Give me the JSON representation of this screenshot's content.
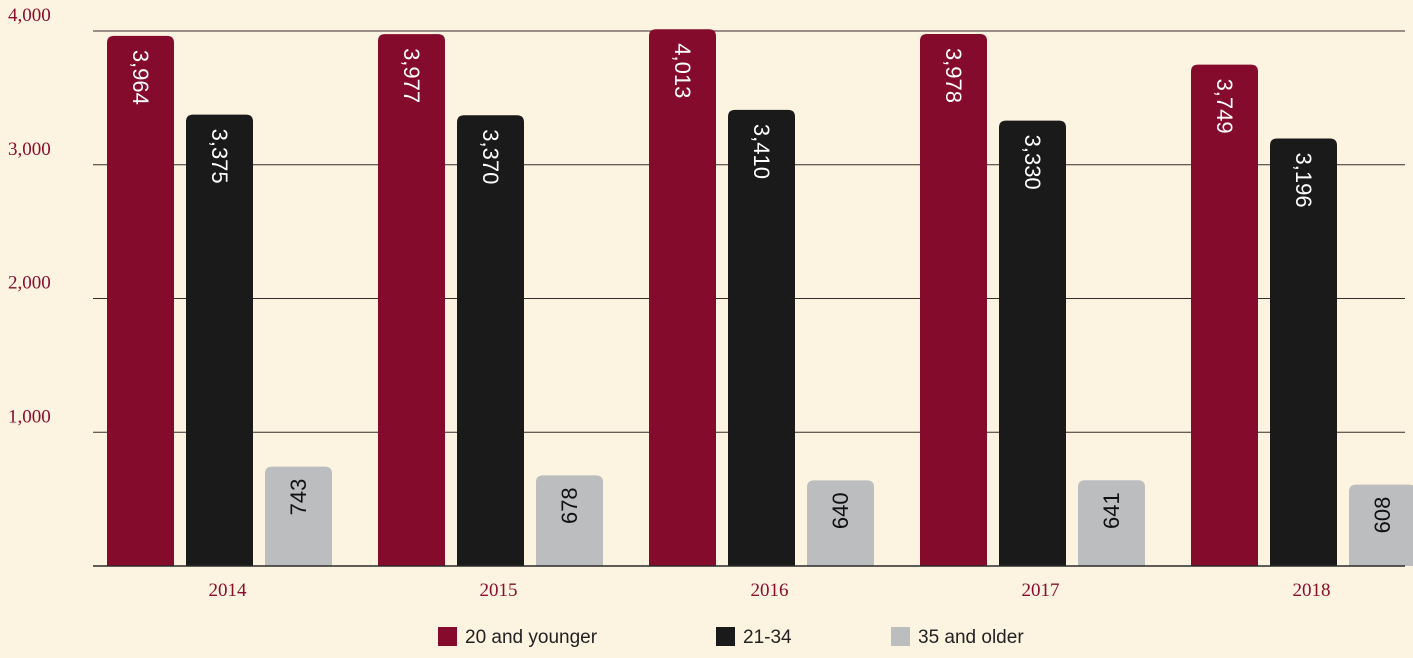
{
  "chart_data": {
    "type": "bar",
    "categories": [
      "2014",
      "2015",
      "2016",
      "2017",
      "2018"
    ],
    "series": [
      {
        "name": "20 and younger",
        "values": [
          3964,
          3977,
          4013,
          3978,
          3749
        ],
        "color": "#850b2c",
        "label_color": "#ffffff"
      },
      {
        "name": "21-34",
        "values": [
          3375,
          3370,
          3410,
          3330,
          3196
        ],
        "color": "#1b1a1b",
        "label_color": "#ffffff"
      },
      {
        "name": "35 and older",
        "values": [
          743,
          678,
          640,
          641,
          608
        ],
        "color": "#bcbdbf",
        "label_color": "#111111"
      }
    ],
    "data_labels": [
      [
        "3,964",
        "3,977",
        "4,013",
        "3,978",
        "3,749"
      ],
      [
        "3,375",
        "3,370",
        "3,410",
        "3,330",
        "3,196"
      ],
      [
        "743",
        "678",
        "640",
        "641",
        "608"
      ]
    ],
    "yticks": [
      {
        "value": 1000,
        "label": "1,000"
      },
      {
        "value": 2000,
        "label": "2,000"
      },
      {
        "value": 3000,
        "label": "3,000"
      },
      {
        "value": 4000,
        "label": "4,000"
      }
    ],
    "ylim": [
      0,
      4000
    ],
    "grid": true,
    "legend_position": "bottom",
    "title": "",
    "xlabel": "",
    "ylabel": ""
  }
}
